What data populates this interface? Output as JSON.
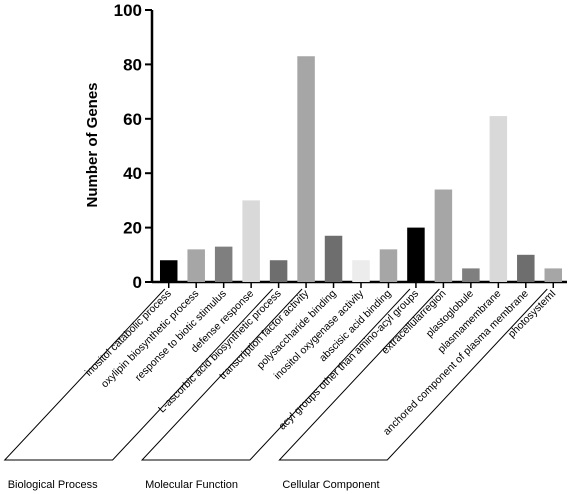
{
  "chart_data": {
    "type": "bar",
    "ylabel": "Number of Genes",
    "ylim": [
      0,
      100
    ],
    "yticks": [
      0,
      20,
      40,
      60,
      80,
      100
    ],
    "categories": [
      "inositol catabolic process",
      "oxylipin biosynthetic process",
      "response to biotic stimulus",
      "defense response",
      "L-ascorbic acid biosynthetic process",
      "transcription factor activity",
      "polysaccharide binding",
      "inositol oxygenase activity",
      "abscisic acid binding",
      "acyl groups other than amino-acyl groups",
      "extracellularregion",
      "plastoglobule",
      "plasmamembrane",
      "anchored component of plasma membrane",
      "photosystemI"
    ],
    "values": [
      8,
      12,
      13,
      30,
      8,
      83,
      17,
      8,
      12,
      20,
      34,
      5,
      61,
      10,
      5
    ],
    "colors": [
      "#000000",
      "#a6a6a6",
      "#7f7f7f",
      "#d9d9d9",
      "#6e6e6e",
      "#a6a6a6",
      "#6e6e6e",
      "#ececec",
      "#a6a6a6",
      "#000000",
      "#a6a6a6",
      "#7f7f7f",
      "#d9d9d9",
      "#6e6e6e",
      "#a6a6a6"
    ],
    "groups": [
      {
        "label": "Biological Process",
        "start": 0,
        "end": 4
      },
      {
        "label": "Molecular Function",
        "start": 5,
        "end": 9
      },
      {
        "label": "Cellular Component",
        "start": 10,
        "end": 14
      }
    ],
    "grid": false,
    "legend": "none"
  }
}
